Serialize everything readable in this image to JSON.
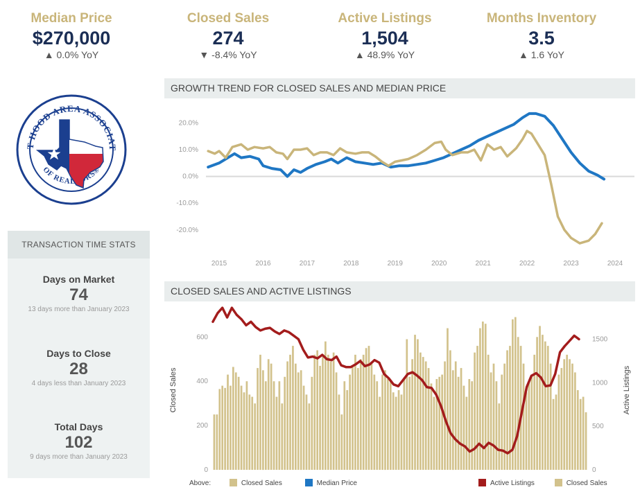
{
  "kpis": [
    {
      "label": "Median Price",
      "value": "$270,000",
      "change": "▲ 0.0% YoY"
    },
    {
      "label": "Closed Sales",
      "value": "274",
      "change": "▼ -8.4% YoY"
    },
    {
      "label": "Active Listings",
      "value": "1,504",
      "change": "▲ 48.9% YoY"
    },
    {
      "label": "Months Inventory",
      "value": "3.5",
      "change": "▲ 1.6 YoY"
    }
  ],
  "logo": {
    "top_text": "FORT HOOD AREA ASSOCIATION",
    "bottom_text": "OF REALTORS®"
  },
  "transaction_stats": {
    "title": "TRANSACTION TIME STATS",
    "items": [
      {
        "label": "Days on Market",
        "value": "74",
        "note": "13 days more than January 2023"
      },
      {
        "label": "Days to Close",
        "value": "28",
        "note": "4 days less than January 2023"
      },
      {
        "label": "Total Days",
        "value": "102",
        "note": "9 days more than January 2023"
      }
    ]
  },
  "colors": {
    "gold": "#c9b57a",
    "bar_gold": "#d2c28c",
    "blue": "#1f77c4",
    "red": "#a31c1c",
    "navy": "#1b2e55"
  },
  "chart_data": [
    {
      "type": "line",
      "title": "GROWTH TREND FOR CLOSED SALES AND MEDIAN PRICE",
      "x_ticks": [
        "2015",
        "2016",
        "2017",
        "2018",
        "2019",
        "2020",
        "2021",
        "2022",
        "2023",
        "2024"
      ],
      "y_ticks": [
        "20.0%",
        "10.0%",
        "0.0%",
        "-10.0%",
        "-20.0%"
      ],
      "xlim": [
        2014.7,
        2024.0
      ],
      "ylim": [
        -26,
        24
      ],
      "series": [
        {
          "name": "Median Price",
          "color": "#1f77c4",
          "points": [
            [
              2014.75,
              3.5
            ],
            [
              2015.0,
              5
            ],
            [
              2015.2,
              7
            ],
            [
              2015.35,
              8.5
            ],
            [
              2015.5,
              7
            ],
            [
              2015.7,
              7.5
            ],
            [
              2015.9,
              6.5
            ],
            [
              2016.0,
              4
            ],
            [
              2016.2,
              3
            ],
            [
              2016.4,
              2.5
            ],
            [
              2016.55,
              0
            ],
            [
              2016.7,
              2.5
            ],
            [
              2016.85,
              1.5
            ],
            [
              2017.0,
              3
            ],
            [
              2017.2,
              4.5
            ],
            [
              2017.4,
              5.5
            ],
            [
              2017.55,
              6.5
            ],
            [
              2017.7,
              5
            ],
            [
              2017.9,
              7
            ],
            [
              2018.1,
              5.5
            ],
            [
              2018.3,
              5
            ],
            [
              2018.5,
              4.5
            ],
            [
              2018.7,
              5
            ],
            [
              2018.9,
              3.5
            ],
            [
              2019.1,
              4
            ],
            [
              2019.3,
              4
            ],
            [
              2019.5,
              4.5
            ],
            [
              2019.7,
              5
            ],
            [
              2019.9,
              6
            ],
            [
              2020.1,
              7
            ],
            [
              2020.3,
              8.5
            ],
            [
              2020.5,
              10
            ],
            [
              2020.7,
              11.5
            ],
            [
              2020.9,
              13.5
            ],
            [
              2021.1,
              15
            ],
            [
              2021.3,
              16.5
            ],
            [
              2021.5,
              18
            ],
            [
              2021.7,
              19.5
            ],
            [
              2021.9,
              22
            ],
            [
              2022.05,
              23.5
            ],
            [
              2022.2,
              23.5
            ],
            [
              2022.4,
              22.5
            ],
            [
              2022.6,
              19
            ],
            [
              2022.8,
              14
            ],
            [
              2023.0,
              9
            ],
            [
              2023.2,
              5
            ],
            [
              2023.4,
              2
            ],
            [
              2023.6,
              0.5
            ],
            [
              2023.75,
              -1
            ]
          ]
        },
        {
          "name": "Closed Sales",
          "color": "#c9b57a",
          "points": [
            [
              2014.75,
              9.5
            ],
            [
              2014.9,
              8.5
            ],
            [
              2015.0,
              9.5
            ],
            [
              2015.15,
              7
            ],
            [
              2015.3,
              11
            ],
            [
              2015.5,
              12
            ],
            [
              2015.65,
              10
            ],
            [
              2015.8,
              11
            ],
            [
              2016.0,
              10.5
            ],
            [
              2016.15,
              11
            ],
            [
              2016.3,
              9
            ],
            [
              2016.45,
              8.5
            ],
            [
              2016.55,
              6.5
            ],
            [
              2016.7,
              10
            ],
            [
              2016.85,
              10
            ],
            [
              2017.0,
              10.5
            ],
            [
              2017.15,
              8
            ],
            [
              2017.3,
              9
            ],
            [
              2017.45,
              9
            ],
            [
              2017.6,
              8
            ],
            [
              2017.75,
              10.5
            ],
            [
              2017.9,
              9
            ],
            [
              2018.1,
              8.5
            ],
            [
              2018.25,
              9
            ],
            [
              2018.4,
              9
            ],
            [
              2018.55,
              7.5
            ],
            [
              2018.7,
              5.5
            ],
            [
              2018.85,
              4
            ],
            [
              2019.0,
              5.5
            ],
            [
              2019.15,
              6
            ],
            [
              2019.3,
              6.5
            ],
            [
              2019.5,
              8
            ],
            [
              2019.7,
              10
            ],
            [
              2019.9,
              12.5
            ],
            [
              2020.05,
              13
            ],
            [
              2020.15,
              10
            ],
            [
              2020.3,
              8
            ],
            [
              2020.5,
              9
            ],
            [
              2020.65,
              9
            ],
            [
              2020.8,
              10
            ],
            [
              2020.95,
              6
            ],
            [
              2021.1,
              12
            ],
            [
              2021.25,
              10
            ],
            [
              2021.4,
              11
            ],
            [
              2021.55,
              7.5
            ],
            [
              2021.75,
              10.5
            ],
            [
              2021.9,
              14
            ],
            [
              2022.0,
              17
            ],
            [
              2022.1,
              16
            ],
            [
              2022.25,
              12
            ],
            [
              2022.4,
              8
            ],
            [
              2022.55,
              -3
            ],
            [
              2022.7,
              -15
            ],
            [
              2022.85,
              -20
            ],
            [
              2023.0,
              -23
            ],
            [
              2023.2,
              -25
            ],
            [
              2023.4,
              -24
            ],
            [
              2023.55,
              -21.5
            ],
            [
              2023.7,
              -17.5
            ]
          ]
        }
      ]
    },
    {
      "type": "bar",
      "title": "CLOSED SALES AND ACTIVE LISTINGS",
      "ylabel_left": "Closed Sales",
      "ylabel_right": "Active Listings",
      "y_ticks_left": [
        0,
        200,
        400,
        600
      ],
      "y_ticks_right": [
        0,
        500,
        1000,
        1500
      ],
      "ylim_left": [
        0,
        720
      ],
      "ylim_right": [
        0,
        1830
      ],
      "closed_sales": [
        250,
        250,
        365,
        380,
        370,
        430,
        380,
        465,
        440,
        420,
        380,
        350,
        400,
        340,
        330,
        300,
        460,
        520,
        450,
        400,
        500,
        480,
        400,
        330,
        400,
        300,
        420,
        490,
        520,
        560,
        480,
        440,
        450,
        380,
        340,
        300,
        420,
        520,
        540,
        470,
        510,
        580,
        520,
        490,
        530,
        440,
        340,
        250,
        400,
        360,
        430,
        470,
        520,
        460,
        500,
        520,
        550,
        560,
        480,
        430,
        400,
        330,
        430,
        450,
        410,
        400,
        350,
        330,
        360,
        340,
        410,
        590,
        420,
        500,
        610,
        590,
        530,
        510,
        490,
        460,
        390,
        330,
        410,
        420,
        430,
        490,
        640,
        540,
        450,
        490,
        420,
        460,
        380,
        330,
        410,
        400,
        530,
        560,
        640,
        670,
        660,
        520,
        440,
        480,
        400,
        300,
        430,
        480,
        540,
        560,
        680,
        690,
        600,
        560,
        480,
        350,
        400,
        430,
        520,
        600,
        650,
        610,
        580,
        560,
        480,
        320,
        340,
        430,
        460,
        500,
        520,
        500,
        480,
        440,
        360,
        320,
        330,
        260
      ],
      "active_listings": [
        1700,
        1800,
        1860,
        1750,
        1860,
        1780,
        1730,
        1660,
        1700,
        1640,
        1600,
        1620,
        1630,
        1590,
        1560,
        1600,
        1580,
        1540,
        1500,
        1380,
        1290,
        1300,
        1280,
        1320,
        1270,
        1260,
        1300,
        1200,
        1180,
        1180,
        1210,
        1250,
        1190,
        1210,
        1260,
        1230,
        1100,
        1050,
        980,
        960,
        1030,
        1100,
        1120,
        1080,
        1030,
        950,
        940,
        860,
        730,
        560,
        420,
        350,
        300,
        270,
        210,
        240,
        300,
        250,
        310,
        280,
        230,
        220,
        190,
        230,
        390,
        670,
        950,
        1080,
        1110,
        1060,
        960,
        970,
        1100,
        1350,
        1420,
        1480,
        1540,
        1500
      ]
    }
  ],
  "legend": {
    "above_label": "Above:",
    "left": [
      {
        "label": "Closed Sales",
        "color": "#d2c28c"
      },
      {
        "label": "Median Price",
        "color": "#1f77c4"
      }
    ],
    "right": [
      {
        "label": "Active Listings",
        "color": "#a31c1c"
      },
      {
        "label": "Closed Sales",
        "color": "#d2c28c"
      }
    ]
  }
}
